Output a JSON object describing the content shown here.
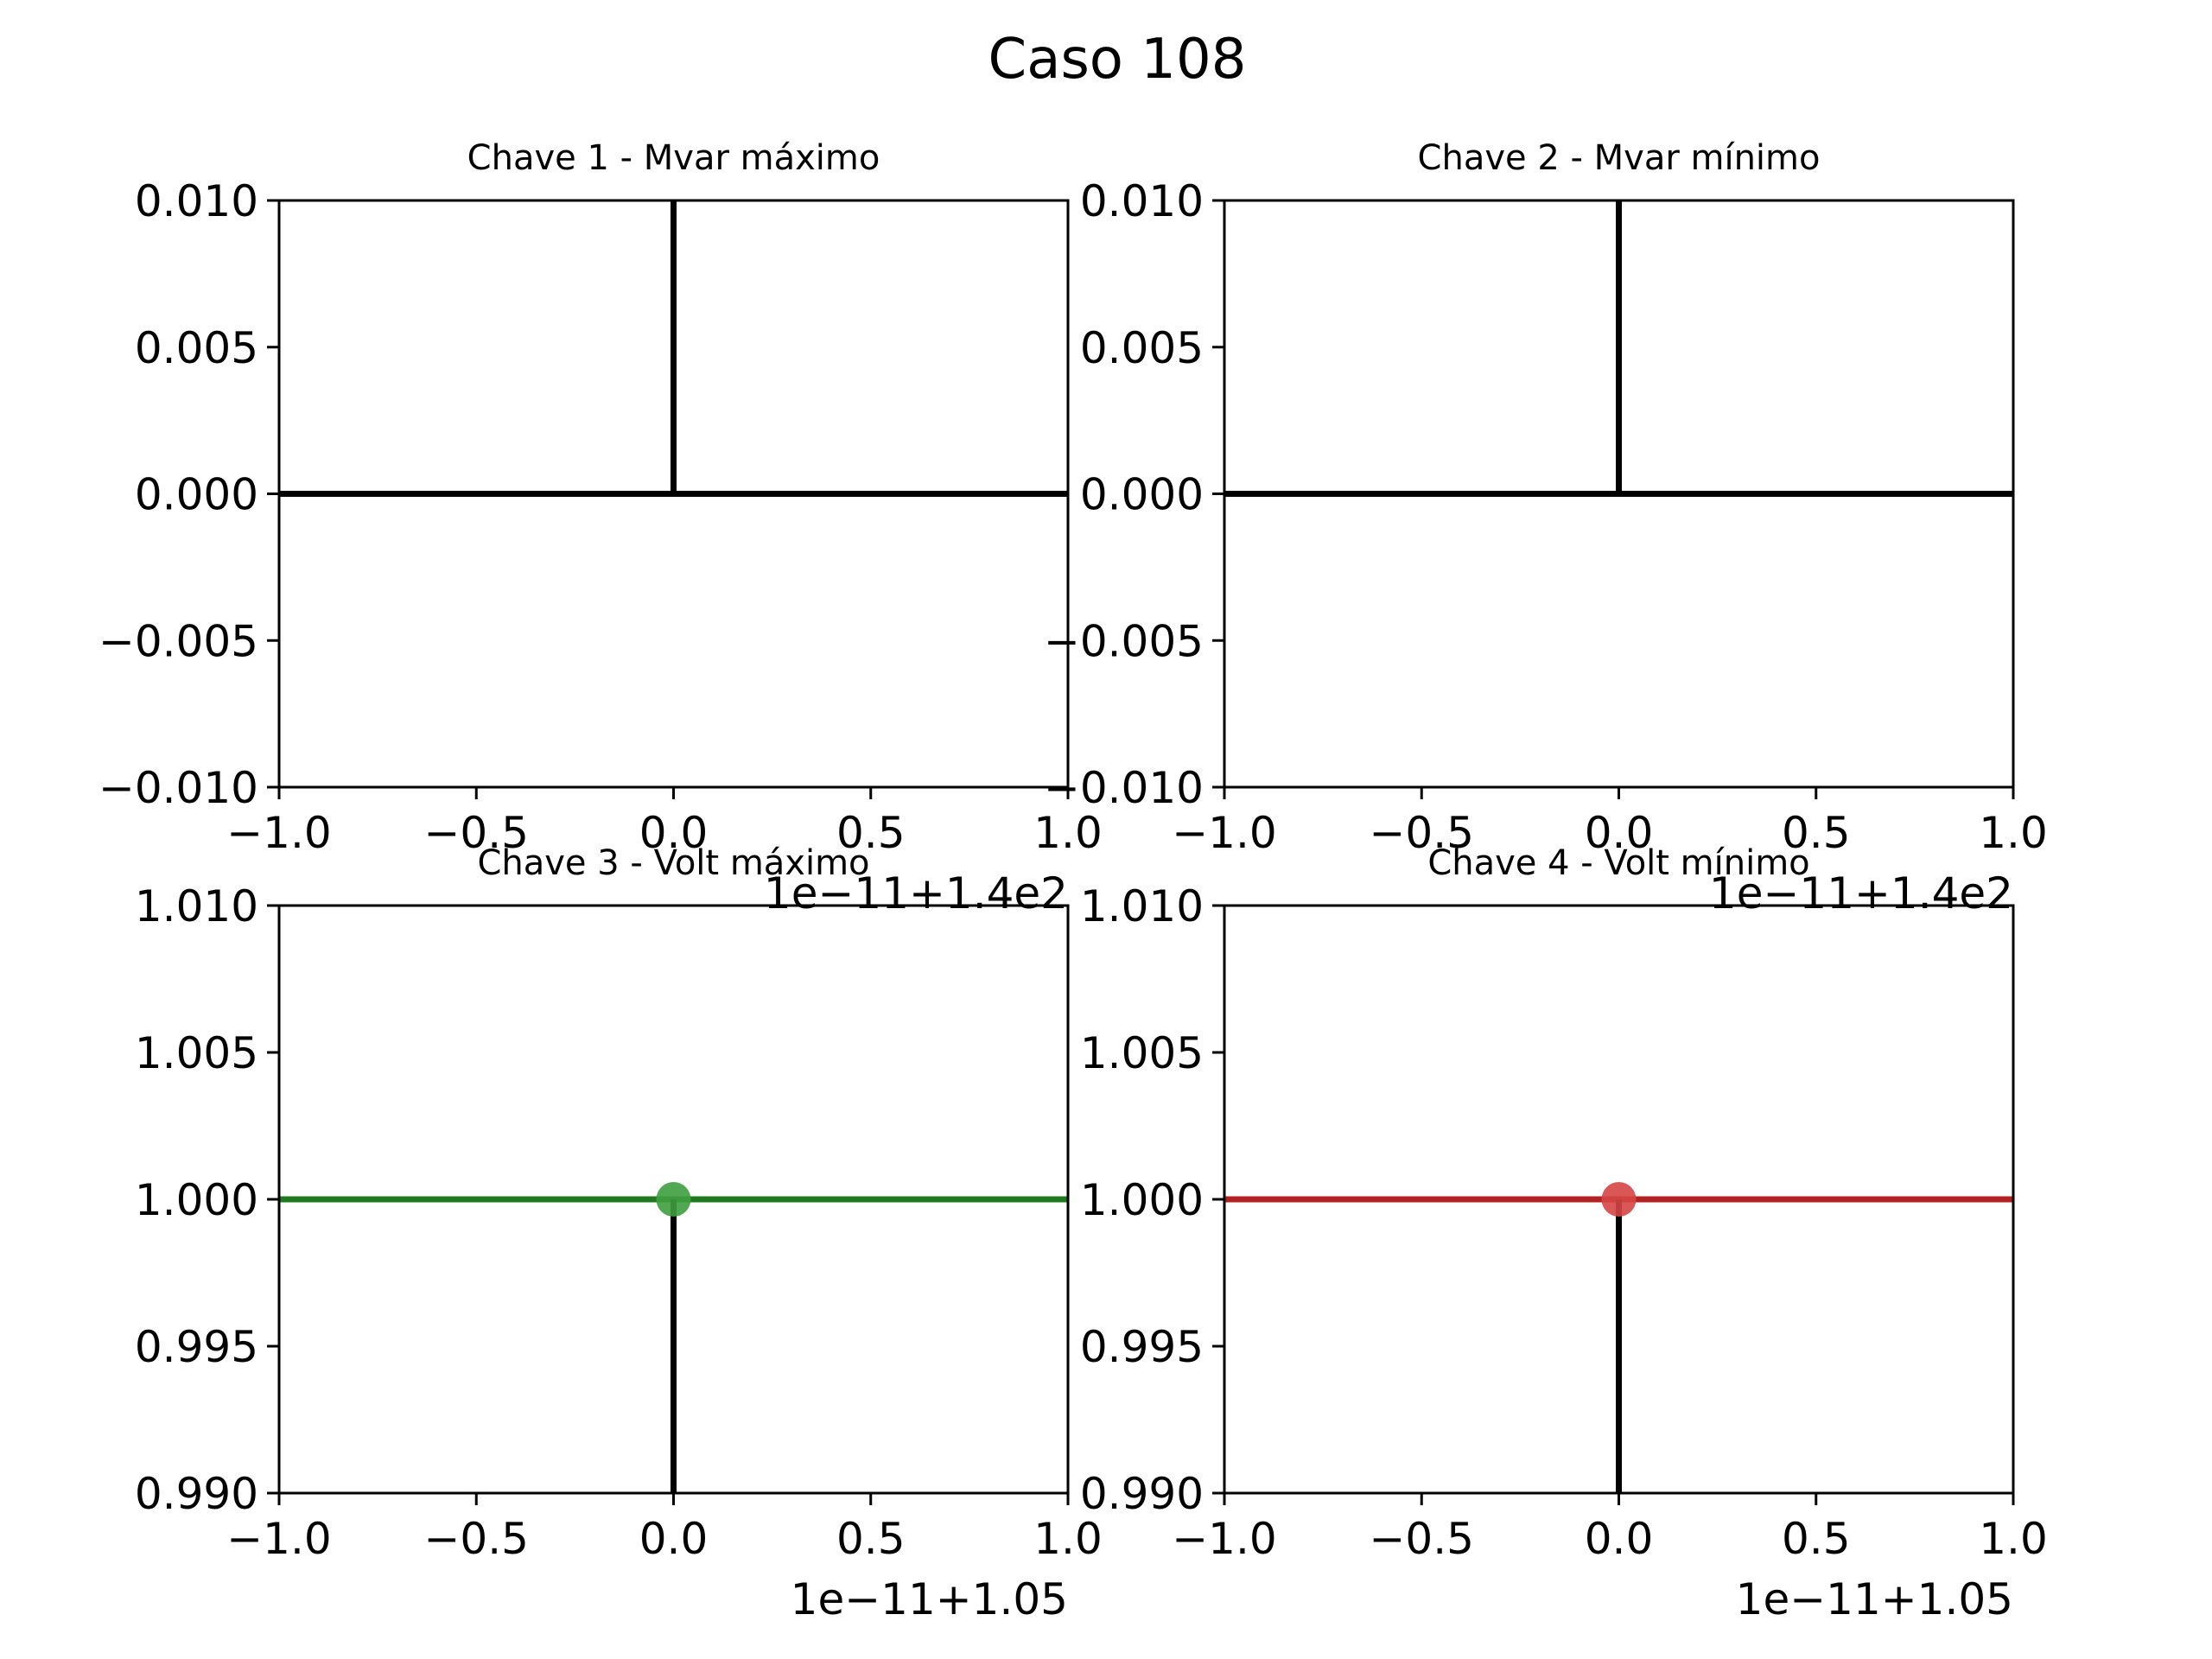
{
  "suptitle": "Caso 108",
  "colors": {
    "axis": "#000000",
    "background": "#ffffff",
    "volt_max": "#1f7a1f",
    "volt_max_marker": "#3f9f3f",
    "volt_min": "#b22222",
    "volt_min_marker": "#d64545"
  },
  "chart_data": [
    {
      "type": "line",
      "title": "Chave 1 - Mvar máximo",
      "xlim": [
        -1.0,
        1.0
      ],
      "ylim": [
        -0.01,
        0.01
      ],
      "xticks": [
        "−1.0",
        "−0.5",
        "0.0",
        "0.5",
        "1.0"
      ],
      "yticks": [
        "0.010",
        "0.005",
        "0.000",
        "−0.005",
        "−0.010"
      ],
      "x_offset": "1e−11+1.4e2",
      "series": [
        {
          "kind": "hline",
          "y": 0.0,
          "color": "#000000"
        },
        {
          "kind": "vline",
          "x": 0.0,
          "y0": 0.0,
          "y1": 0.01,
          "color": "#000000"
        }
      ],
      "grid": false
    },
    {
      "type": "line",
      "title": "Chave 2 - Mvar mínimo",
      "xlim": [
        -1.0,
        1.0
      ],
      "ylim": [
        -0.01,
        0.01
      ],
      "xticks": [
        "−1.0",
        "−0.5",
        "0.0",
        "0.5",
        "1.0"
      ],
      "yticks": [
        "0.010",
        "0.005",
        "0.000",
        "−0.005",
        "−0.010"
      ],
      "x_offset": "1e−11+1.4e2",
      "series": [
        {
          "kind": "hline",
          "y": 0.0,
          "color": "#000000"
        },
        {
          "kind": "vline",
          "x": 0.0,
          "y0": 0.0,
          "y1": 0.01,
          "color": "#000000"
        }
      ],
      "grid": false
    },
    {
      "type": "line",
      "title": "Chave 3 - Volt máximo",
      "xlim": [
        -1.0,
        1.0
      ],
      "ylim": [
        0.99,
        1.01
      ],
      "xticks": [
        "−1.0",
        "−0.5",
        "0.0",
        "0.5",
        "1.0"
      ],
      "yticks": [
        "1.010",
        "1.005",
        "1.000",
        "0.995",
        "0.990"
      ],
      "x_offset": "1e−11+1.05",
      "series": [
        {
          "kind": "hline",
          "y": 1.0,
          "color": "#1f7a1f"
        },
        {
          "kind": "vline",
          "x": 0.0,
          "y0": 0.99,
          "y1": 1.0,
          "color": "#000000"
        },
        {
          "kind": "point",
          "x": 0.0,
          "y": 1.0,
          "color": "#3f9f3f"
        }
      ],
      "grid": false
    },
    {
      "type": "line",
      "title": "Chave 4 - Volt mínimo",
      "xlim": [
        -1.0,
        1.0
      ],
      "ylim": [
        0.99,
        1.01
      ],
      "xticks": [
        "−1.0",
        "−0.5",
        "0.0",
        "0.5",
        "1.0"
      ],
      "yticks": [
        "1.010",
        "1.005",
        "1.000",
        "0.995",
        "0.990"
      ],
      "x_offset": "1e−11+1.05",
      "series": [
        {
          "kind": "hline",
          "y": 1.0,
          "color": "#b22222"
        },
        {
          "kind": "vline",
          "x": 0.0,
          "y0": 0.99,
          "y1": 1.0,
          "color": "#000000"
        },
        {
          "kind": "point",
          "x": 0.0,
          "y": 1.0,
          "color": "#d64545"
        }
      ],
      "grid": false
    }
  ]
}
